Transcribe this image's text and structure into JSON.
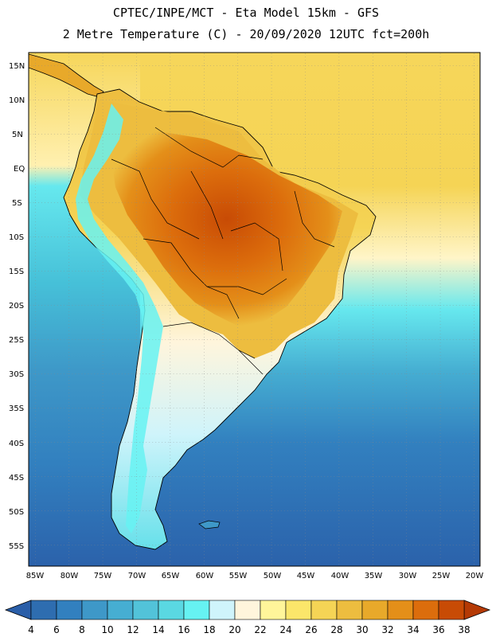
{
  "header": {
    "line1": "CPTEC/INPE/MCT -  Eta Model 15km - GFS",
    "line2": "2 Metre Temperature (C) - 20/09/2020 12UTC fct=200h"
  },
  "map": {
    "lat_labels": [
      "15N",
      "10N",
      "5N",
      "EQ",
      "5S",
      "10S",
      "15S",
      "20S",
      "25S",
      "30S",
      "35S",
      "40S",
      "45S",
      "50S",
      "55S"
    ],
    "lon_labels": [
      "85W",
      "80W",
      "75W",
      "70W",
      "65W",
      "60W",
      "55W",
      "50W",
      "45W",
      "40W",
      "35W",
      "30W",
      "25W",
      "20W"
    ]
  },
  "legend": {
    "labels": [
      "4",
      "6",
      "8",
      "10",
      "12",
      "14",
      "16",
      "18",
      "20",
      "22",
      "24",
      "26",
      "28",
      "30",
      "32",
      "34",
      "36",
      "38"
    ],
    "colors": [
      "#2e6db0",
      "#3280bf",
      "#3e98c8",
      "#46aed2",
      "#52c3d9",
      "#5ad8e2",
      "#66f2f2",
      "#cff4fb",
      "#fff5dc",
      "#fff59a",
      "#fbe66a",
      "#f5d455",
      "#edbd3f",
      "#e8a92a",
      "#e48f19",
      "#dc6d0c",
      "#c84b05"
    ],
    "low_arrow_color": "#2a5ea8",
    "high_arrow_color": "#b53a05"
  },
  "colors": {
    "ocean_south": "#2b62ab",
    "ocean_mid": "#46aed2",
    "ocean_north": "#f5d455",
    "land_hot": "#dc6d0c",
    "land_warm": "#edbd3f",
    "andes": "#66f2f2"
  }
}
